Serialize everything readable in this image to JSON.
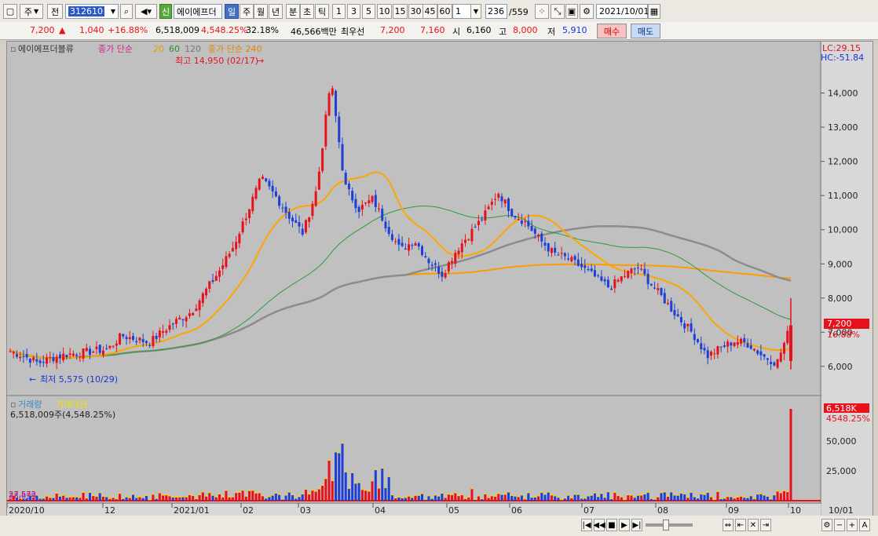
{
  "toolbar": {
    "market": "주",
    "prev_label": "전",
    "code": "312610",
    "sin_label": "신",
    "stock_name": "에이에프더",
    "periods": [
      "일",
      "주",
      "월",
      "년",
      "분",
      "초",
      "틱"
    ],
    "selected_period": "일",
    "intervals": [
      "1",
      "3",
      "5",
      "10",
      "15",
      "30",
      "45",
      "60"
    ],
    "unit_value": "1",
    "count": "236",
    "total": "/559",
    "date": "2021/10/01"
  },
  "quote": {
    "price": "7,200",
    "change_arrow": "▲",
    "change": "1,040",
    "change_pct": "+16.88%",
    "volume": "6,518,009",
    "volume_ratio": "4,548.25%",
    "rate": "32.18%",
    "amount": "46,566백만",
    "ask_label": "최우선",
    "ask": "7,200",
    "bid": "7,160",
    "open_label": "시",
    "open": "6,160",
    "high_label": "고",
    "high": "8,000",
    "low_label": "저",
    "low": "5,910",
    "buy_label": "매수",
    "sell_label": "매도"
  },
  "chart": {
    "legend_name": "에이에프더블류",
    "legend_close": "종가 단순",
    "legend_ma": [
      "20",
      "60",
      "120"
    ],
    "legend_ma240": "종가 단순 240",
    "lc_label": "LC:29.15",
    "hc_label": "HC:-51.84",
    "high_note": "최고 14,950 (02/17)",
    "low_note": "최저 5,575 (10/29)",
    "price_ticks": [
      "14,000",
      "13,000",
      "12,000",
      "11,000",
      "10,000",
      "9,000",
      "8,000",
      "7,000",
      "6,000"
    ],
    "current_price_tag": "7,200",
    "current_pct_tag": "16.88%",
    "volume_legend": "거래량",
    "amount_legend": "거래대금",
    "volume_info": "6,518,009주(4,548.25%)",
    "volume_left_tag": "27,572",
    "volume_left_tag2": "28,699",
    "vol_ticks": [
      "50,000",
      "25,000"
    ],
    "vol_tag": "6,518K",
    "vol_pct_tag": "4548.25%",
    "x_labels": [
      "2020/10",
      "12",
      "2021/01",
      "02",
      "03",
      "04",
      "05",
      "06",
      "07",
      "08",
      "09",
      "10",
      "10/01"
    ],
    "colors": {
      "up": "#e8101a",
      "down": "#1c3fd6",
      "ma5": "#ffd400",
      "ma20": "#ffa500",
      "ma60": "#2e9b3a",
      "ma120": "#8c8c8c",
      "ma240": "#ff9a00"
    }
  },
  "chart_data": {
    "type": "candlestick",
    "title": "에이에프더블류",
    "y_range": [
      5400,
      15000
    ],
    "series": [
      {
        "name": "20",
        "note": "close simple moving average"
      },
      {
        "name": "60"
      },
      {
        "name": "120"
      },
      {
        "name": "종가 단순 240"
      }
    ],
    "key_points": [
      {
        "x": "2020/10/29",
        "label": "최저",
        "value": 5575
      },
      {
        "x": "2021/02/17",
        "label": "최고",
        "value": 14950
      },
      {
        "x": "2021/10/01",
        "label": "close",
        "value": 7200
      }
    ],
    "close_path": [
      6450,
      6300,
      6100,
      6250,
      6350,
      6400,
      6450,
      6500,
      6900,
      6800,
      6700,
      7050,
      7350,
      7600,
      8200,
      8800,
      9500,
      10500,
      11500,
      11000,
      10400,
      9900,
      11200,
      14400,
      11300,
      10600,
      10900,
      10100,
      9400,
      9700,
      9100,
      8700,
      9400,
      9900,
      10400,
      11100,
      10500,
      10200,
      9700,
      9300,
      9150,
      8900,
      8600,
      8300,
      8650,
      8900,
      8400,
      7900,
      7400,
      6950,
      6300,
      6550,
      6750,
      6650,
      6300,
      6100,
      7200
    ]
  }
}
